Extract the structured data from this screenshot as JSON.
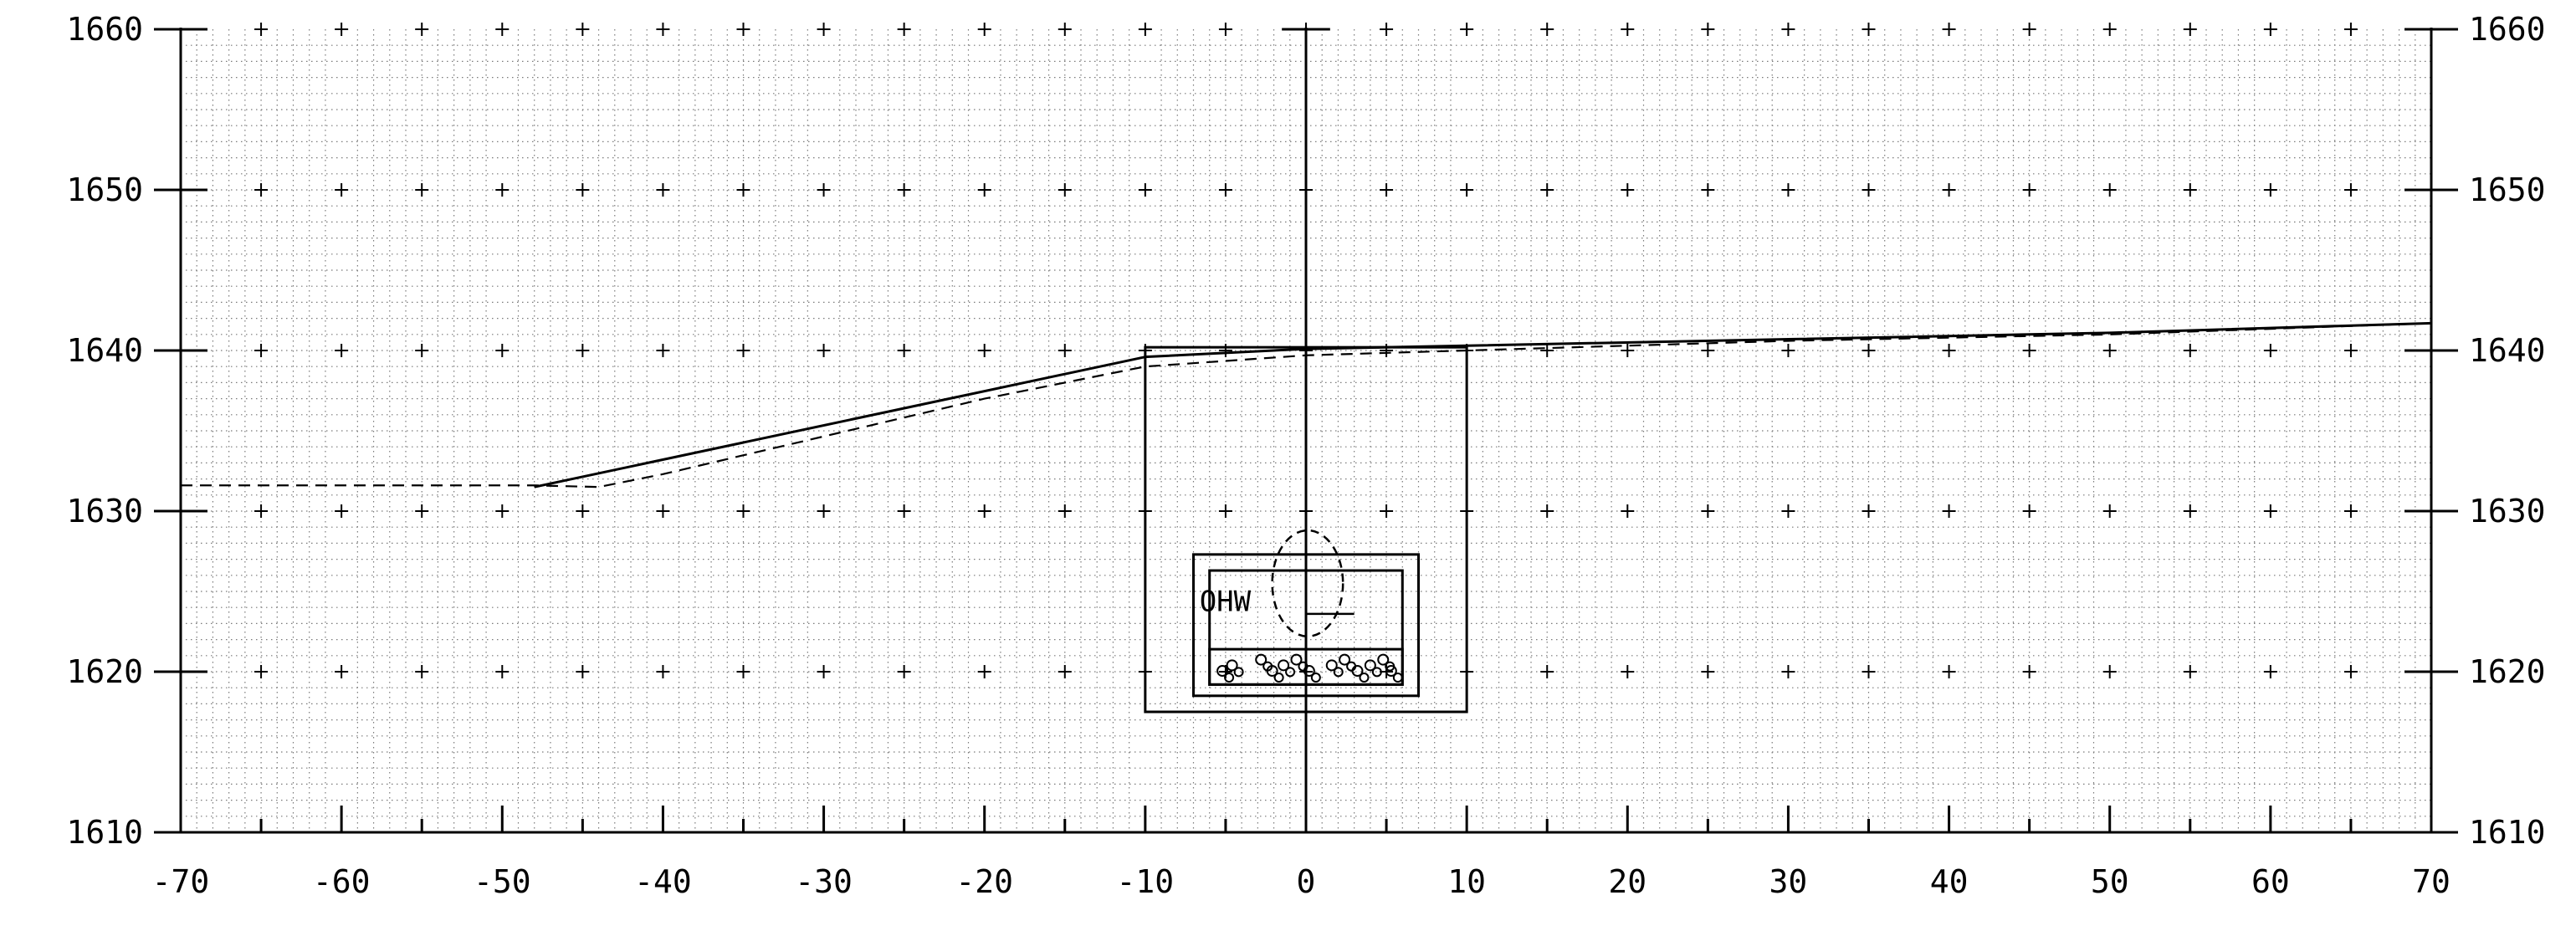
{
  "chart_data": {
    "type": "line",
    "title": "",
    "xlabel": "",
    "ylabel": "",
    "xlim": [
      -70,
      70
    ],
    "ylim": [
      1610,
      1660
    ],
    "grid": true,
    "x_ticks": [
      -70,
      -60,
      -50,
      -40,
      -30,
      -20,
      -10,
      0,
      10,
      20,
      30,
      40,
      50,
      60,
      70
    ],
    "x_tick_labels": [
      "-70",
      "-60",
      "-50",
      "-40",
      "-30",
      "-20",
      "-10",
      "0",
      "10",
      "20",
      "30",
      "40",
      "50",
      "60",
      "70"
    ],
    "y_ticks": [
      1610,
      1620,
      1630,
      1640,
      1650,
      1660
    ],
    "y_tick_labels": [
      "1610",
      "1620",
      "1630",
      "1640",
      "1650",
      "1660"
    ],
    "series": [
      {
        "style": "solid",
        "x": [
          -48,
          -10,
          0,
          10,
          30,
          50,
          70
        ],
        "y": [
          1631.5,
          1639.6,
          1640.1,
          1640.3,
          1640.7,
          1641.1,
          1641.7
        ]
      },
      {
        "style": "dashed",
        "x": [
          -70,
          -48,
          -44,
          -40,
          -20,
          -10,
          0,
          10,
          30,
          50,
          70
        ],
        "y": [
          1631.6,
          1631.6,
          1631.5,
          1632.3,
          1637.0,
          1639.0,
          1639.7,
          1640.0,
          1640.6,
          1641.0,
          1641.7
        ]
      }
    ],
    "annotations": [
      {
        "text": "OHW",
        "x": -6,
        "y": 1624.5
      }
    ],
    "features": {
      "outer_box": {
        "x": [
          -10,
          10
        ],
        "y": [
          1617.5,
          1640.2
        ]
      },
      "box_2": {
        "x": [
          -7,
          7
        ],
        "y": [
          1618.5,
          1627.3
        ]
      },
      "box_3": {
        "x": [
          -6,
          6
        ],
        "y": [
          1619.2,
          1626.3
        ]
      },
      "bed_box": {
        "x": [
          -6,
          6
        ],
        "y": [
          1619.2,
          1621.4
        ]
      },
      "ohw_line": {
        "x": [
          1,
          3
        ],
        "y": 1623.6
      },
      "ellipse": {
        "cx": 0.1,
        "cy": 1625.5,
        "rx": 2.2,
        "ry": 3.3
      },
      "centerline_x": 0
    }
  }
}
